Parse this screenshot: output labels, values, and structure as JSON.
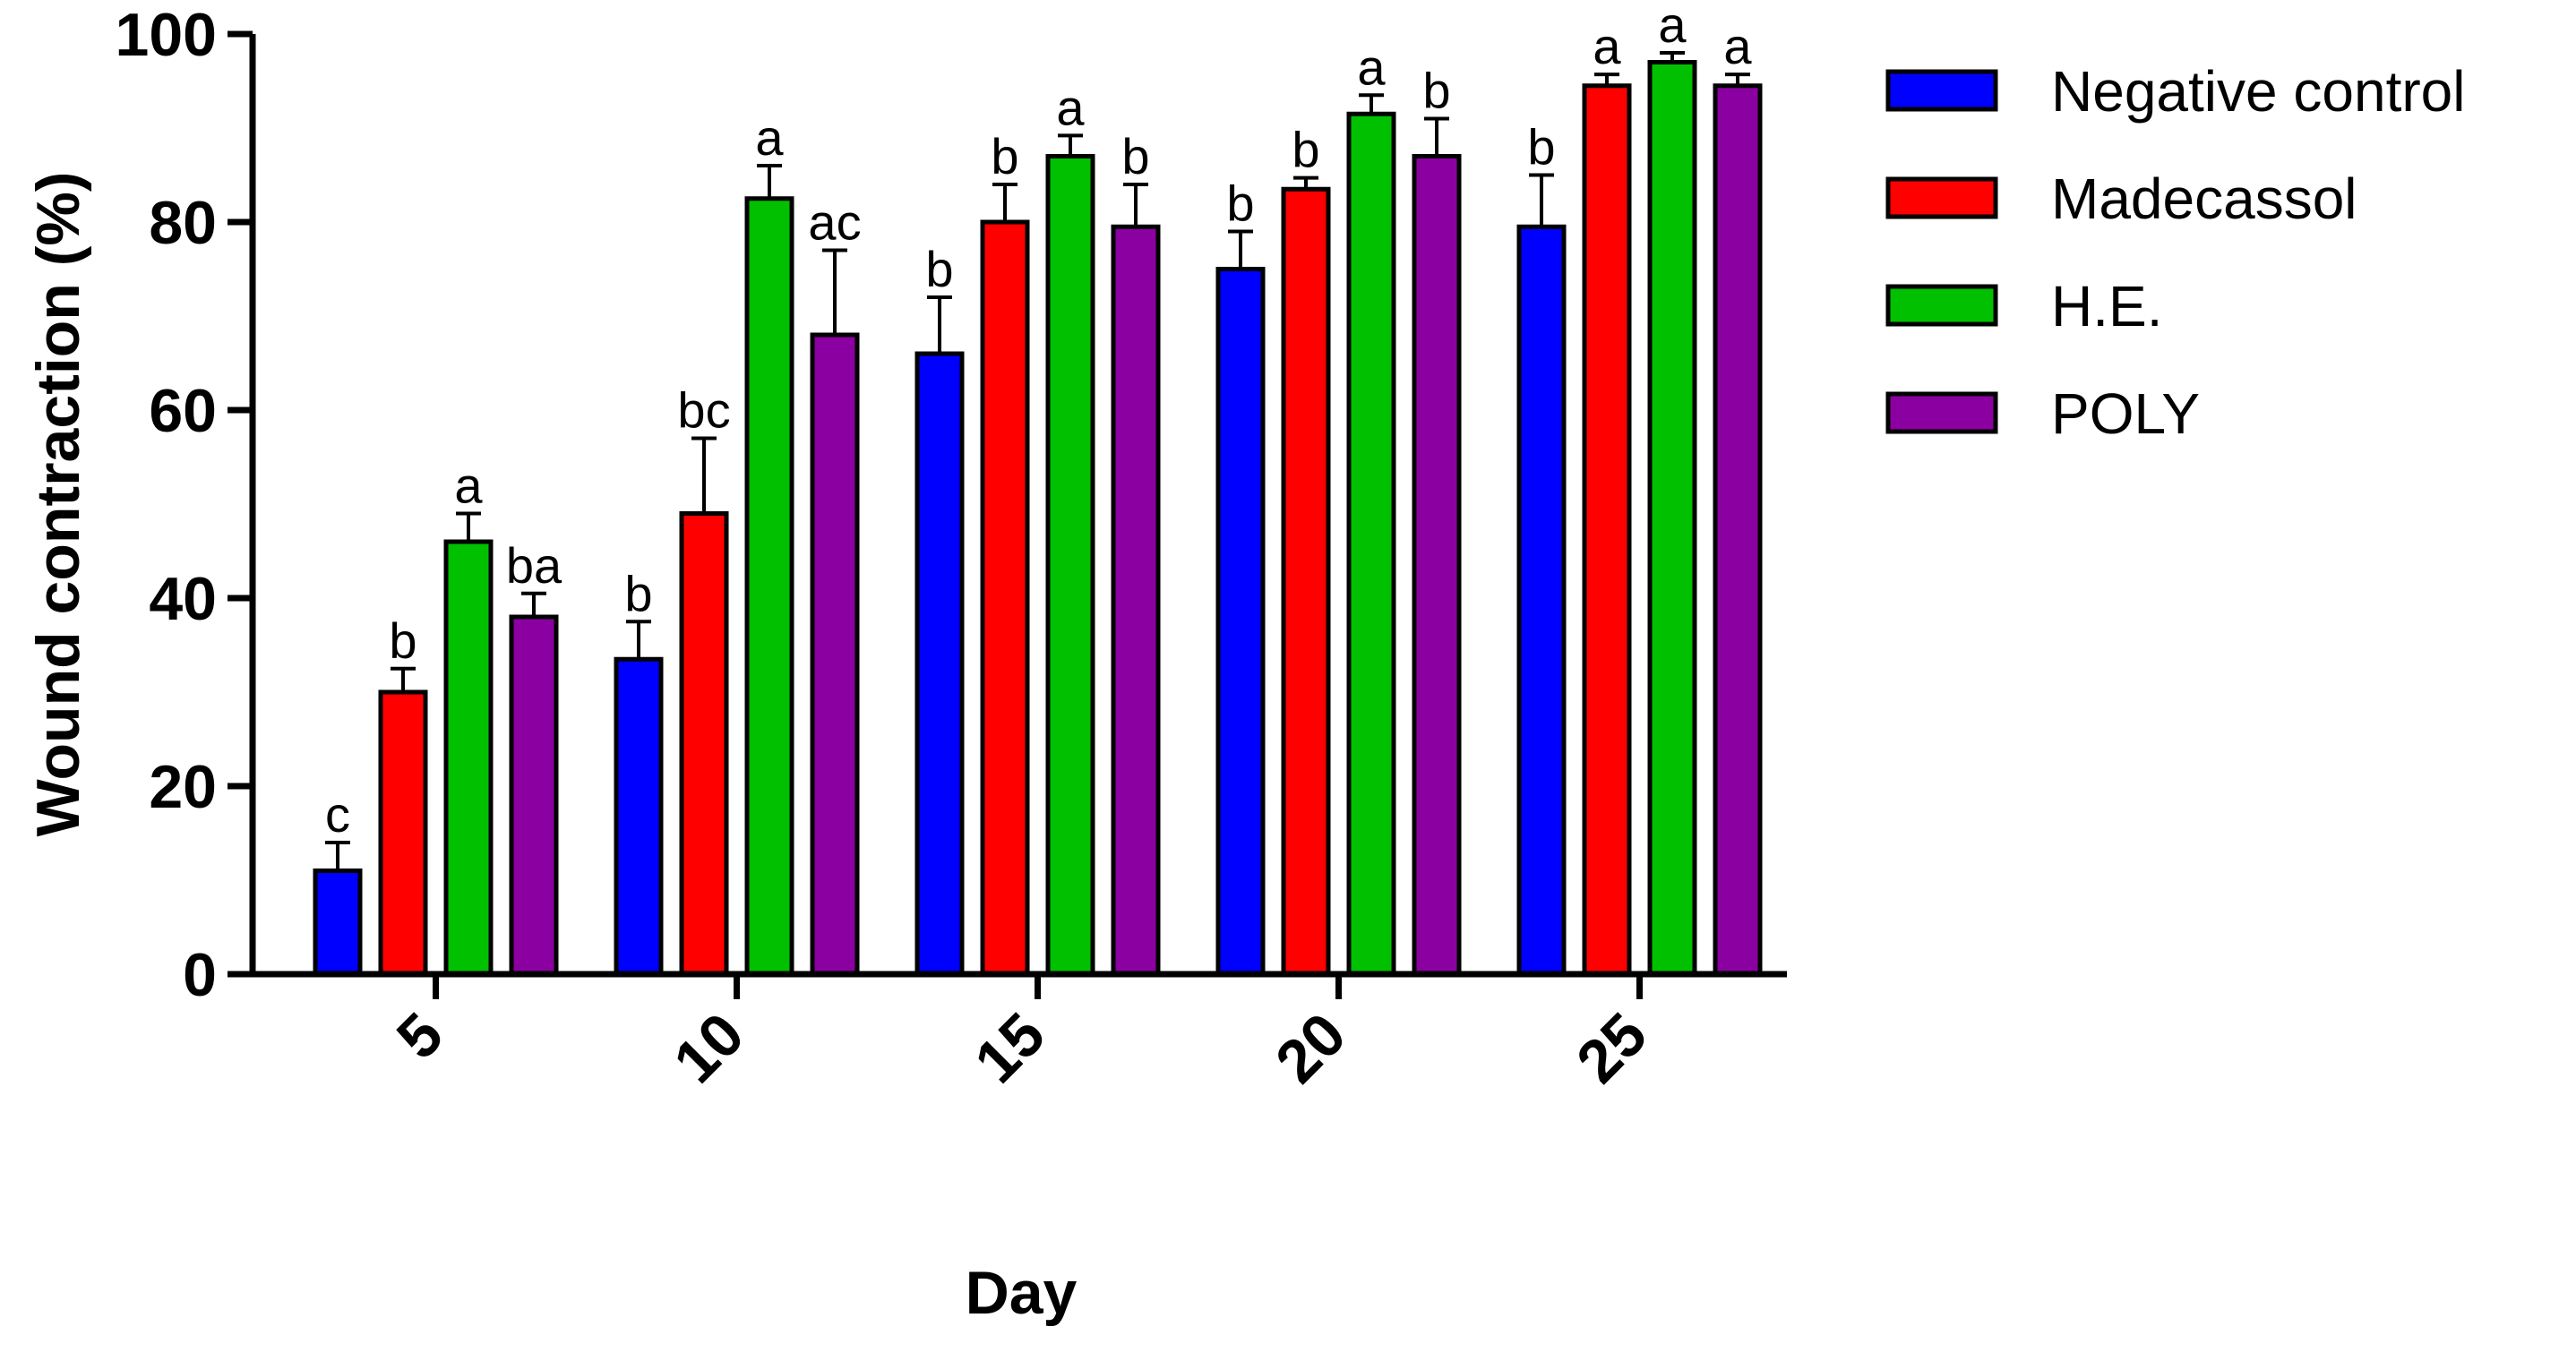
{
  "chart_data": {
    "type": "bar",
    "xlabel": "Day",
    "ylabel": "Wound contraction (%)",
    "ylim": [
      0,
      100
    ],
    "yticks": [
      0,
      20,
      40,
      60,
      80,
      100
    ],
    "categories": [
      "5",
      "10",
      "15",
      "20",
      "25"
    ],
    "series": [
      {
        "name": "Negative control",
        "color": "#0000ff",
        "values": [
          11,
          33.5,
          66,
          75,
          79.5
        ],
        "errors": [
          3,
          4,
          6,
          4,
          5.5
        ],
        "letters": [
          "c",
          "b",
          "b",
          "b",
          "b"
        ]
      },
      {
        "name": "Madecassol",
        "color": "#ff0000",
        "values": [
          30,
          49,
          80,
          83.5,
          94.5
        ],
        "errors": [
          2.5,
          8,
          4,
          1.2,
          1.2
        ],
        "letters": [
          "b",
          "bc",
          "b",
          "b",
          "a"
        ]
      },
      {
        "name": "H.E.",
        "color": "#00c000",
        "values": [
          46,
          82.5,
          87,
          91.5,
          97
        ],
        "errors": [
          3,
          3.5,
          2.2,
          2,
          1
        ],
        "letters": [
          "a",
          "a",
          "a",
          "a",
          "a"
        ]
      },
      {
        "name": "POLY",
        "color": "#8b00a0",
        "values": [
          38,
          68,
          79.5,
          87,
          94.5
        ],
        "errors": [
          2.5,
          9,
          4.5,
          4,
          1.2
        ],
        "letters": [
          "ba",
          "ac",
          "b",
          "b",
          "a"
        ]
      }
    ],
    "legend_position": "top-right"
  }
}
